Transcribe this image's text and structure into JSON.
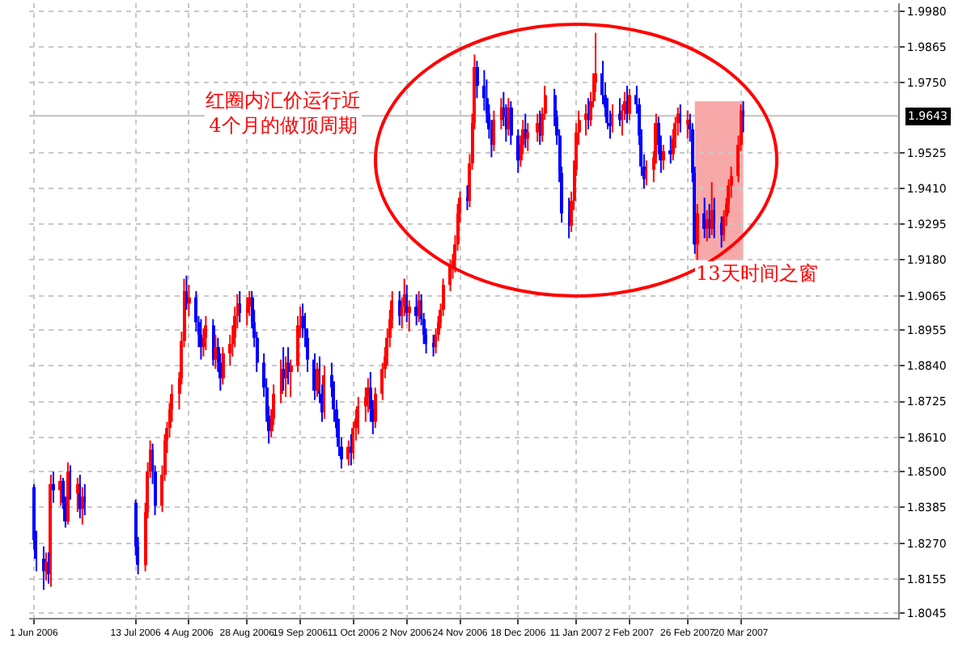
{
  "chart_data": {
    "type": "candlestick",
    "x": [
      "2006-06-01",
      "2006-06-02",
      "2006-06-05",
      "2006-06-06",
      "2006-06-07",
      "2006-06-08",
      "2006-06-09",
      "2006-06-12",
      "2006-06-13",
      "2006-06-14",
      "2006-06-15",
      "2006-06-16",
      "2006-06-19",
      "2006-06-20",
      "2006-06-21",
      "2006-06-22",
      "2006-07-13",
      "2006-07-14",
      "2006-07-17",
      "2006-07-18",
      "2006-07-19",
      "2006-07-20",
      "2006-07-21",
      "2006-07-24",
      "2006-07-25",
      "2006-07-26",
      "2006-07-27",
      "2006-07-28",
      "2006-07-31",
      "2006-08-01",
      "2006-08-02",
      "2006-08-03",
      "2006-08-04",
      "2006-08-07",
      "2006-08-08",
      "2006-08-09",
      "2006-08-10",
      "2006-08-11",
      "2006-08-14",
      "2006-08-15",
      "2006-08-16",
      "2006-08-17",
      "2006-08-18",
      "2006-08-21",
      "2006-08-22",
      "2006-08-23",
      "2006-08-24",
      "2006-08-25",
      "2006-08-28",
      "2006-08-29",
      "2006-08-30",
      "2006-08-31",
      "2006-09-01",
      "2006-09-04",
      "2006-09-05",
      "2006-09-06",
      "2006-09-07",
      "2006-09-08",
      "2006-09-11",
      "2006-09-12",
      "2006-09-13",
      "2006-09-14",
      "2006-09-15",
      "2006-09-18",
      "2006-09-19",
      "2006-09-20",
      "2006-09-21",
      "2006-09-22",
      "2006-09-25",
      "2006-09-26",
      "2006-09-27",
      "2006-09-28",
      "2006-09-29",
      "2006-10-02",
      "2006-10-03",
      "2006-10-04",
      "2006-10-05",
      "2006-10-06",
      "2006-10-09",
      "2006-10-10",
      "2006-10-11",
      "2006-10-12",
      "2006-10-13",
      "2006-10-16",
      "2006-10-17",
      "2006-10-18",
      "2006-10-19",
      "2006-10-20",
      "2006-10-23",
      "2006-10-24",
      "2006-10-25",
      "2006-10-26",
      "2006-10-27",
      "2006-10-30",
      "2006-10-31",
      "2006-11-01",
      "2006-11-02",
      "2006-11-03",
      "2006-11-06",
      "2006-11-07",
      "2006-11-08",
      "2006-11-09",
      "2006-11-10",
      "2006-11-13",
      "2006-11-14",
      "2006-11-15",
      "2006-11-16",
      "2006-11-17",
      "2006-11-20",
      "2006-11-21",
      "2006-11-22",
      "2006-11-23",
      "2006-11-24",
      "2006-11-27",
      "2006-11-28",
      "2006-11-29",
      "2006-11-30",
      "2006-12-01",
      "2006-12-04",
      "2006-12-05",
      "2006-12-06",
      "2006-12-07",
      "2006-12-08",
      "2006-12-11",
      "2006-12-12",
      "2006-12-13",
      "2006-12-14",
      "2006-12-15",
      "2006-12-18",
      "2006-12-19",
      "2006-12-20",
      "2006-12-21",
      "2006-12-22",
      "2006-12-26",
      "2006-12-27",
      "2006-12-28",
      "2006-12-29",
      "2007-01-02",
      "2007-01-03",
      "2007-01-04",
      "2007-01-05",
      "2007-01-08",
      "2007-01-09",
      "2007-01-10",
      "2007-01-11",
      "2007-01-12",
      "2007-01-15",
      "2007-01-16",
      "2007-01-17",
      "2007-01-18",
      "2007-01-19",
      "2007-01-22",
      "2007-01-23",
      "2007-01-24",
      "2007-01-25",
      "2007-01-26",
      "2007-01-29",
      "2007-01-30",
      "2007-01-31",
      "2007-02-01",
      "2007-02-02",
      "2007-02-05",
      "2007-02-06",
      "2007-02-07",
      "2007-02-08",
      "2007-02-09",
      "2007-02-12",
      "2007-02-13",
      "2007-02-14",
      "2007-02-15",
      "2007-02-16",
      "2007-02-19",
      "2007-02-20",
      "2007-02-21",
      "2007-02-22",
      "2007-02-23",
      "2007-02-26",
      "2007-02-27",
      "2007-02-28",
      "2007-03-01",
      "2007-03-02",
      "2007-03-05",
      "2007-03-06",
      "2007-03-07",
      "2007-03-08",
      "2007-03-09",
      "2007-03-12",
      "2007-03-13",
      "2007-03-14",
      "2007-03-15",
      "2007-03-16",
      "2007-03-19",
      "2007-03-20",
      "2007-03-21"
    ],
    "ohlc": [
      [
        1.845,
        1.846,
        1.825,
        1.828
      ],
      [
        1.828,
        1.831,
        1.818,
        1.822
      ],
      [
        1.822,
        1.826,
        1.812,
        1.818
      ],
      [
        1.818,
        1.824,
        1.815,
        1.821
      ],
      [
        1.821,
        1.824,
        1.814,
        1.817
      ],
      [
        1.817,
        1.849,
        1.813,
        1.846
      ],
      [
        1.846,
        1.85,
        1.84,
        1.844
      ],
      [
        1.844,
        1.849,
        1.839,
        1.847
      ],
      [
        1.847,
        1.848,
        1.838,
        1.84
      ],
      [
        1.84,
        1.842,
        1.832,
        1.834
      ],
      [
        1.834,
        1.853,
        1.833,
        1.85
      ],
      [
        1.85,
        1.852,
        1.841,
        1.843
      ],
      [
        1.843,
        1.848,
        1.837,
        1.846
      ],
      [
        1.846,
        1.849,
        1.835,
        1.838
      ],
      [
        1.838,
        1.845,
        1.833,
        1.842
      ],
      [
        1.842,
        1.846,
        1.836,
        1.84
      ],
      [
        1.84,
        1.841,
        1.823,
        1.826
      ],
      [
        1.826,
        1.829,
        1.817,
        1.82
      ],
      [
        1.82,
        1.84,
        1.818,
        1.837
      ],
      [
        1.837,
        1.853,
        1.835,
        1.85
      ],
      [
        1.85,
        1.86,
        1.848,
        1.857
      ],
      [
        1.857,
        1.859,
        1.846,
        1.85
      ],
      [
        1.85,
        1.852,
        1.836,
        1.839
      ],
      [
        1.839,
        1.852,
        1.837,
        1.849
      ],
      [
        1.849,
        1.862,
        1.847,
        1.86
      ],
      [
        1.86,
        1.866,
        1.856,
        1.864
      ],
      [
        1.864,
        1.872,
        1.861,
        1.87
      ],
      [
        1.87,
        1.878,
        1.866,
        1.875
      ],
      [
        1.875,
        1.882,
        1.87,
        1.88
      ],
      [
        1.88,
        1.895,
        1.878,
        1.892
      ],
      [
        1.892,
        1.912,
        1.89,
        1.908
      ],
      [
        1.908,
        1.913,
        1.902,
        1.904
      ],
      [
        1.904,
        1.91,
        1.9,
        1.906
      ],
      [
        1.906,
        1.908,
        1.895,
        1.898
      ],
      [
        1.898,
        1.9,
        1.89,
        1.894
      ],
      [
        1.894,
        1.899,
        1.886,
        1.89
      ],
      [
        1.89,
        1.896,
        1.887,
        1.893
      ],
      [
        1.893,
        1.9,
        1.889,
        1.897
      ],
      [
        1.897,
        1.899,
        1.884,
        1.886
      ],
      [
        1.886,
        1.894,
        1.883,
        1.89
      ],
      [
        1.89,
        1.893,
        1.882,
        1.885
      ],
      [
        1.885,
        1.888,
        1.876,
        1.88
      ],
      [
        1.88,
        1.89,
        1.878,
        1.888
      ],
      [
        1.888,
        1.894,
        1.884,
        1.891
      ],
      [
        1.891,
        1.897,
        1.887,
        1.893
      ],
      [
        1.893,
        1.903,
        1.89,
        1.9
      ],
      [
        1.9,
        1.907,
        1.896,
        1.904
      ],
      [
        1.904,
        1.908,
        1.898,
        1.901
      ],
      [
        1.901,
        1.906,
        1.897,
        1.903
      ],
      [
        1.903,
        1.908,
        1.9,
        1.906
      ],
      [
        1.906,
        1.908,
        1.896,
        1.898
      ],
      [
        1.898,
        1.902,
        1.89,
        1.893
      ],
      [
        1.893,
        1.895,
        1.882,
        1.885
      ],
      [
        1.885,
        1.888,
        1.874,
        1.877
      ],
      [
        1.877,
        1.88,
        1.866,
        1.868
      ],
      [
        1.868,
        1.871,
        1.859,
        1.863
      ],
      [
        1.863,
        1.87,
        1.861,
        1.867
      ],
      [
        1.867,
        1.878,
        1.865,
        1.875
      ],
      [
        1.875,
        1.886,
        1.872,
        1.883
      ],
      [
        1.883,
        1.89,
        1.876,
        1.88
      ],
      [
        1.88,
        1.887,
        1.874,
        1.885
      ],
      [
        1.885,
        1.89,
        1.878,
        1.882
      ],
      [
        1.882,
        1.886,
        1.874,
        1.884
      ],
      [
        1.884,
        1.9,
        1.882,
        1.897
      ],
      [
        1.897,
        1.903,
        1.893,
        1.9
      ],
      [
        1.9,
        1.904,
        1.893,
        1.896
      ],
      [
        1.896,
        1.901,
        1.89,
        1.893
      ],
      [
        1.893,
        1.896,
        1.882,
        1.886
      ],
      [
        1.886,
        1.888,
        1.873,
        1.876
      ],
      [
        1.876,
        1.885,
        1.874,
        1.883
      ],
      [
        1.883,
        1.887,
        1.872,
        1.875
      ],
      [
        1.875,
        1.878,
        1.866,
        1.869
      ],
      [
        1.869,
        1.884,
        1.867,
        1.881
      ],
      [
        1.881,
        1.885,
        1.874,
        1.877
      ],
      [
        1.877,
        1.879,
        1.866,
        1.87
      ],
      [
        1.87,
        1.873,
        1.861,
        1.864
      ],
      [
        1.864,
        1.867,
        1.855,
        1.858
      ],
      [
        1.858,
        1.861,
        1.851,
        1.854
      ],
      [
        1.854,
        1.86,
        1.852,
        1.858
      ],
      [
        1.858,
        1.862,
        1.852,
        1.856
      ],
      [
        1.856,
        1.866,
        1.854,
        1.864
      ],
      [
        1.864,
        1.87,
        1.86,
        1.867
      ],
      [
        1.867,
        1.874,
        1.862,
        1.871
      ],
      [
        1.871,
        1.877,
        1.866,
        1.874
      ],
      [
        1.874,
        1.88,
        1.869,
        1.877
      ],
      [
        1.877,
        1.882,
        1.866,
        1.87
      ],
      [
        1.87,
        1.873,
        1.862,
        1.866
      ],
      [
        1.866,
        1.877,
        1.864,
        1.875
      ],
      [
        1.875,
        1.885,
        1.873,
        1.883
      ],
      [
        1.883,
        1.89,
        1.88,
        1.887
      ],
      [
        1.887,
        1.896,
        1.884,
        1.893
      ],
      [
        1.893,
        1.902,
        1.89,
        1.899
      ],
      [
        1.899,
        1.908,
        1.896,
        1.905
      ],
      [
        1.905,
        1.908,
        1.897,
        1.9
      ],
      [
        1.9,
        1.906,
        1.896,
        1.903
      ],
      [
        1.903,
        1.912,
        1.9,
        1.907
      ],
      [
        1.907,
        1.91,
        1.898,
        1.901
      ],
      [
        1.901,
        1.905,
        1.895,
        1.903
      ],
      [
        1.903,
        1.907,
        1.897,
        1.9
      ],
      [
        1.9,
        1.908,
        1.898,
        1.905
      ],
      [
        1.905,
        1.907,
        1.897,
        1.899
      ],
      [
        1.899,
        1.901,
        1.891,
        1.894
      ],
      [
        1.894,
        1.896,
        1.888,
        1.891
      ],
      [
        1.891,
        1.894,
        1.887,
        1.89
      ],
      [
        1.89,
        1.896,
        1.888,
        1.894
      ],
      [
        1.894,
        1.9,
        1.892,
        1.898
      ],
      [
        1.898,
        1.904,
        1.896,
        1.902
      ],
      [
        1.902,
        1.912,
        1.9,
        1.91
      ],
      [
        1.91,
        1.918,
        1.908,
        1.916
      ],
      [
        1.916,
        1.92,
        1.912,
        1.918
      ],
      [
        1.918,
        1.926,
        1.914,
        1.923
      ],
      [
        1.923,
        1.936,
        1.921,
        1.933
      ],
      [
        1.933,
        1.94,
        1.93,
        1.938
      ],
      [
        1.938,
        1.942,
        1.934,
        1.937
      ],
      [
        1.937,
        1.952,
        1.935,
        1.949
      ],
      [
        1.949,
        1.965,
        1.947,
        1.962
      ],
      [
        1.962,
        1.984,
        1.96,
        1.98
      ],
      [
        1.98,
        1.982,
        1.97,
        1.974
      ],
      [
        1.974,
        1.979,
        1.966,
        1.97
      ],
      [
        1.97,
        1.976,
        1.962,
        1.965
      ],
      [
        1.965,
        1.968,
        1.957,
        1.96
      ],
      [
        1.96,
        1.963,
        1.951,
        1.955
      ],
      [
        1.955,
        1.966,
        1.953,
        1.963
      ],
      [
        1.963,
        1.97,
        1.96,
        1.967
      ],
      [
        1.967,
        1.972,
        1.961,
        1.964
      ],
      [
        1.964,
        1.968,
        1.956,
        1.96
      ],
      [
        1.96,
        1.97,
        1.958,
        1.967
      ],
      [
        1.967,
        1.969,
        1.955,
        1.958
      ],
      [
        1.958,
        1.96,
        1.946,
        1.95
      ],
      [
        1.95,
        1.958,
        1.948,
        1.955
      ],
      [
        1.955,
        1.963,
        1.952,
        1.96
      ],
      [
        1.96,
        1.965,
        1.954,
        1.957
      ],
      [
        1.957,
        1.962,
        1.953,
        1.959
      ],
      [
        1.959,
        1.965,
        1.956,
        1.962
      ],
      [
        1.962,
        1.966,
        1.955,
        1.958
      ],
      [
        1.958,
        1.967,
        1.956,
        1.965
      ],
      [
        1.965,
        1.974,
        1.963,
        1.971
      ],
      [
        1.971,
        1.973,
        1.961,
        1.964
      ],
      [
        1.964,
        1.966,
        1.955,
        1.958
      ],
      [
        1.958,
        1.96,
        1.943,
        1.946
      ],
      [
        1.946,
        1.948,
        1.93,
        1.933
      ],
      [
        1.933,
        1.938,
        1.925,
        1.929
      ],
      [
        1.929,
        1.94,
        1.927,
        1.937
      ],
      [
        1.937,
        1.95,
        1.934,
        1.947
      ],
      [
        1.947,
        1.962,
        1.945,
        1.959
      ],
      [
        1.959,
        1.966,
        1.955,
        1.963
      ],
      [
        1.963,
        1.968,
        1.958,
        1.965
      ],
      [
        1.965,
        1.97,
        1.96,
        1.963
      ],
      [
        1.963,
        1.972,
        1.961,
        1.969
      ],
      [
        1.969,
        1.978,
        1.967,
        1.975
      ],
      [
        1.975,
        1.991,
        1.972,
        1.978
      ],
      [
        1.978,
        1.982,
        1.968,
        1.971
      ],
      [
        1.971,
        1.975,
        1.964,
        1.967
      ],
      [
        1.967,
        1.97,
        1.96,
        1.962
      ],
      [
        1.962,
        1.966,
        1.957,
        1.961
      ],
      [
        1.961,
        1.968,
        1.959,
        1.965
      ],
      [
        1.965,
        1.97,
        1.961,
        1.963
      ],
      [
        1.963,
        1.968,
        1.958,
        1.966
      ],
      [
        1.966,
        1.972,
        1.963,
        1.969
      ],
      [
        1.969,
        1.974,
        1.962,
        1.965
      ],
      [
        1.965,
        1.973,
        1.963,
        1.971
      ],
      [
        1.971,
        1.974,
        1.965,
        1.968
      ],
      [
        1.968,
        1.97,
        1.955,
        1.958
      ],
      [
        1.958,
        1.96,
        1.945,
        1.948
      ],
      [
        1.948,
        1.952,
        1.941,
        1.944
      ],
      [
        1.944,
        1.95,
        1.942,
        1.947
      ],
      [
        1.947,
        1.953,
        1.943,
        1.951
      ],
      [
        1.951,
        1.965,
        1.949,
        1.962
      ],
      [
        1.962,
        1.964,
        1.952,
        1.955
      ],
      [
        1.955,
        1.958,
        1.946,
        1.95
      ],
      [
        1.95,
        1.955,
        1.947,
        1.953
      ],
      [
        1.953,
        1.958,
        1.949,
        1.952
      ],
      [
        1.952,
        1.96,
        1.95,
        1.957
      ],
      [
        1.957,
        1.964,
        1.954,
        1.962
      ],
      [
        1.962,
        1.967,
        1.958,
        1.965
      ],
      [
        1.965,
        1.968,
        1.959,
        1.962
      ],
      [
        1.962,
        1.966,
        1.957,
        1.963
      ],
      [
        1.963,
        1.965,
        1.956,
        1.96
      ],
      [
        1.96,
        1.962,
        1.943,
        1.946
      ],
      [
        1.946,
        1.948,
        1.92,
        1.923
      ],
      [
        1.923,
        1.936,
        1.918,
        1.933
      ],
      [
        1.933,
        1.938,
        1.925,
        1.928
      ],
      [
        1.928,
        1.934,
        1.924,
        1.931
      ],
      [
        1.931,
        1.936,
        1.925,
        1.928
      ],
      [
        1.928,
        1.943,
        1.926,
        1.934
      ],
      [
        1.934,
        1.938,
        1.925,
        1.93
      ],
      [
        1.93,
        1.932,
        1.922,
        1.926
      ],
      [
        1.926,
        1.934,
        1.924,
        1.932
      ],
      [
        1.932,
        1.938,
        1.929,
        1.936
      ],
      [
        1.936,
        1.944,
        1.933,
        1.942
      ],
      [
        1.942,
        1.948,
        1.938,
        1.945
      ],
      [
        1.945,
        1.958,
        1.943,
        1.955
      ],
      [
        1.955,
        1.968,
        1.953,
        1.966
      ],
      [
        1.966,
        1.969,
        1.959,
        1.9643
      ]
    ],
    "colors": [
      "#0000ff",
      "#0000ff",
      "#0000ff",
      "#ff0000",
      "#0000ff",
      "#ff0000",
      "#0000ff",
      "#ff0000",
      "#0000ff",
      "#0000ff",
      "#ff0000",
      "#0000ff",
      "#ff0000",
      "#0000ff",
      "#ff0000",
      "#0000ff",
      "#0000ff",
      "#0000ff",
      "#ff0000",
      "#ff0000",
      "#ff0000",
      "#0000ff",
      "#0000ff",
      "#ff0000",
      "#ff0000",
      "#ff0000",
      "#ff0000",
      "#ff0000",
      "#ff0000",
      "#ff0000",
      "#ff0000",
      "#0000ff",
      "#ff0000",
      "#0000ff",
      "#0000ff",
      "#0000ff",
      "#ff0000",
      "#ff0000",
      "#0000ff",
      "#ff0000",
      "#0000ff",
      "#0000ff",
      "#ff0000",
      "#ff0000",
      "#ff0000",
      "#ff0000",
      "#ff0000",
      "#0000ff",
      "#ff0000",
      "#ff0000",
      "#0000ff",
      "#0000ff",
      "#0000ff",
      "#0000ff",
      "#0000ff",
      "#0000ff",
      "#ff0000",
      "#ff0000",
      "#ff0000",
      "#0000ff",
      "#ff0000",
      "#0000ff",
      "#ff0000",
      "#ff0000",
      "#ff0000",
      "#0000ff",
      "#0000ff",
      "#0000ff",
      "#0000ff",
      "#ff0000",
      "#0000ff",
      "#0000ff",
      "#ff0000",
      "#0000ff",
      "#0000ff",
      "#0000ff",
      "#0000ff",
      "#0000ff",
      "#ff0000",
      "#0000ff",
      "#ff0000",
      "#ff0000",
      "#ff0000",
      "#ff0000",
      "#ff0000",
      "#0000ff",
      "#0000ff",
      "#ff0000",
      "#ff0000",
      "#ff0000",
      "#ff0000",
      "#ff0000",
      "#ff0000",
      "#0000ff",
      "#ff0000",
      "#ff0000",
      "#0000ff",
      "#ff0000",
      "#0000ff",
      "#ff0000",
      "#0000ff",
      "#0000ff",
      "#0000ff",
      "#0000ff",
      "#ff0000",
      "#ff0000",
      "#ff0000",
      "#ff0000",
      "#ff0000",
      "#ff0000",
      "#ff0000",
      "#ff0000",
      "#ff0000",
      "#0000ff",
      "#ff0000",
      "#ff0000",
      "#ff0000",
      "#0000ff",
      "#0000ff",
      "#0000ff",
      "#0000ff",
      "#0000ff",
      "#ff0000",
      "#ff0000",
      "#0000ff",
      "#0000ff",
      "#ff0000",
      "#0000ff",
      "#0000ff",
      "#ff0000",
      "#ff0000",
      "#0000ff",
      "#ff0000",
      "#ff0000",
      "#0000ff",
      "#ff0000",
      "#ff0000",
      "#0000ff",
      "#0000ff",
      "#0000ff",
      "#0000ff",
      "#0000ff",
      "#ff0000",
      "#ff0000",
      "#ff0000",
      "#ff0000",
      "#ff0000",
      "#0000ff",
      "#ff0000",
      "#ff0000",
      "#ff0000",
      "#0000ff",
      "#0000ff",
      "#0000ff",
      "#0000ff",
      "#ff0000",
      "#0000ff",
      "#ff0000",
      "#ff0000",
      "#0000ff",
      "#ff0000",
      "#0000ff",
      "#0000ff",
      "#0000ff",
      "#0000ff",
      "#ff0000",
      "#ff0000",
      "#ff0000",
      "#0000ff",
      "#0000ff",
      "#ff0000",
      "#0000ff",
      "#ff0000",
      "#ff0000",
      "#ff0000",
      "#0000ff",
      "#ff0000",
      "#0000ff",
      "#0000ff",
      "#0000ff",
      "#ff0000",
      "#0000ff",
      "#ff0000",
      "#0000ff",
      "#ff0000",
      "#0000ff",
      "#0000ff",
      "#ff0000",
      "#ff0000",
      "#ff0000",
      "#ff0000",
      "#ff0000",
      "#ff0000",
      "#0000ff"
    ],
    "xlim": [
      "2006-05-30",
      "2007-05-24"
    ],
    "xticks": [
      {
        "value": "2006-06-01",
        "label": "1 Jun 2006"
      },
      {
        "value": "2006-07-13",
        "label": "13 Jul 2006"
      },
      {
        "value": "2006-08-04",
        "label": "4 Aug 2006"
      },
      {
        "value": "2006-08-28",
        "label": "28 Aug 2006"
      },
      {
        "value": "2006-09-19",
        "label": "19 Sep 2006"
      },
      {
        "value": "2006-10-11",
        "label": "11 Oct 2006"
      },
      {
        "value": "2006-11-02",
        "label": "2 Nov 2006"
      },
      {
        "value": "2006-11-24",
        "label": "24 Nov 2006"
      },
      {
        "value": "2006-12-18",
        "label": "18 Dec 2006"
      },
      {
        "value": "2007-01-11",
        "label": "11 Jan 2007"
      },
      {
        "value": "2007-02-02",
        "label": "2 Feb 2007"
      },
      {
        "value": "2007-02-26",
        "label": "26 Feb 2007"
      },
      {
        "value": "2007-03-20",
        "label": "20 Mar 2007"
      }
    ],
    "ylim": [
      1.803,
      2.0005
    ],
    "yticks": [
      {
        "value": 1.998,
        "label": "1.9980"
      },
      1.9865,
      {
        "value": 1.975,
        "label": "1.9750"
      },
      1.9525,
      {
        "value": 1.941,
        "label": "1.9410"
      },
      1.9295,
      {
        "value": 1.918,
        "label": "1.9180"
      },
      1.9065,
      1.8955,
      {
        "value": 1.884,
        "label": "1.8840"
      },
      1.8725,
      {
        "value": 1.861,
        "label": "1.8610"
      },
      {
        "value": 1.85,
        "label": "1.8500"
      },
      1.8385,
      {
        "value": 1.827,
        "label": "1.8270"
      },
      1.8155,
      1.8045
    ],
    "grid": true,
    "ref_lines": [
      {
        "axis": "y",
        "value": 1.9643,
        "label": "1.9643",
        "color": "#c0c0c0"
      }
    ],
    "bands": [
      {
        "axis": "x",
        "from": "2007-03-01",
        "to": "2007-03-21",
        "color": "#f7a8a8"
      }
    ],
    "annotations": [
      "红圈内汇价运行近\n4个月的做顶周期",
      {
        "text": "13天时间之窗",
        "x": "2007-03-01",
        "y": 1.918
      }
    ]
  }
}
